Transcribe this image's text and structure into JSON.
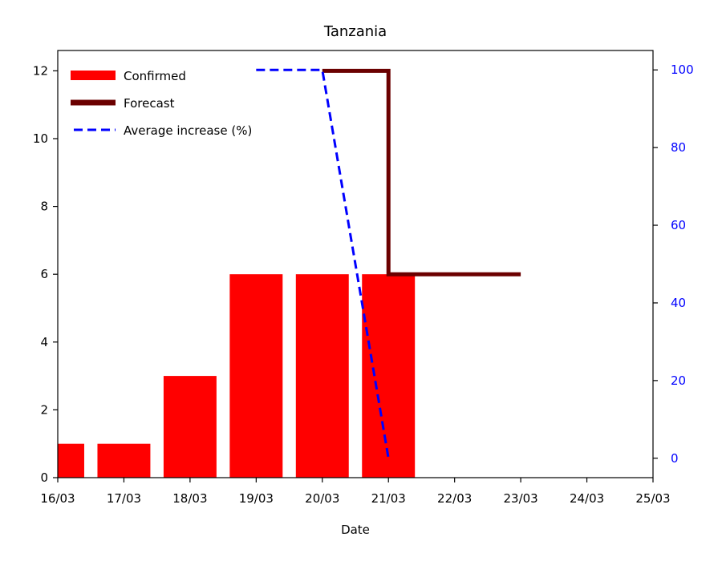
{
  "chart_data": {
    "type": "bar",
    "title": "Tanzania",
    "xlabel": "Date",
    "ylabel": "",
    "x_ticks": [
      "16/03",
      "17/03",
      "18/03",
      "19/03",
      "20/03",
      "21/03",
      "22/03",
      "23/03",
      "24/03",
      "25/03"
    ],
    "ylim": [
      0,
      12.6
    ],
    "y_ticks": [
      0,
      2,
      4,
      6,
      8,
      10,
      12
    ],
    "y2lim": [
      -5,
      105
    ],
    "y2_ticks": [
      0,
      20,
      40,
      60,
      80,
      100
    ],
    "y2_color": "#0000ff",
    "grid": false,
    "legend_position": "top-left",
    "series": [
      {
        "name": "Confirmed",
        "type": "bar",
        "axis": "left",
        "color": "#ff0000",
        "points": [
          {
            "x": "16/03",
            "y": 1
          },
          {
            "x": "17/03",
            "y": 1
          },
          {
            "x": "18/03",
            "y": 3
          },
          {
            "x": "19/03",
            "y": 6
          },
          {
            "x": "20/03",
            "y": 6
          },
          {
            "x": "21/03",
            "y": 6
          }
        ]
      },
      {
        "name": "Forecast",
        "type": "step-line",
        "axis": "left",
        "color": "#6b0000",
        "points": [
          {
            "x": "20/03",
            "y": 12
          },
          {
            "x": "21/03",
            "y": 12
          },
          {
            "x": "21/03",
            "y": 6
          },
          {
            "x": "23/03",
            "y": 6
          }
        ]
      },
      {
        "name": "Average increase (%)",
        "type": "dashed-line",
        "axis": "right",
        "color": "#0000ff",
        "points": [
          {
            "x": "19/03",
            "y": 100
          },
          {
            "x": "20/03",
            "y": 100
          },
          {
            "x": "21/03",
            "y": 0
          }
        ]
      }
    ]
  }
}
